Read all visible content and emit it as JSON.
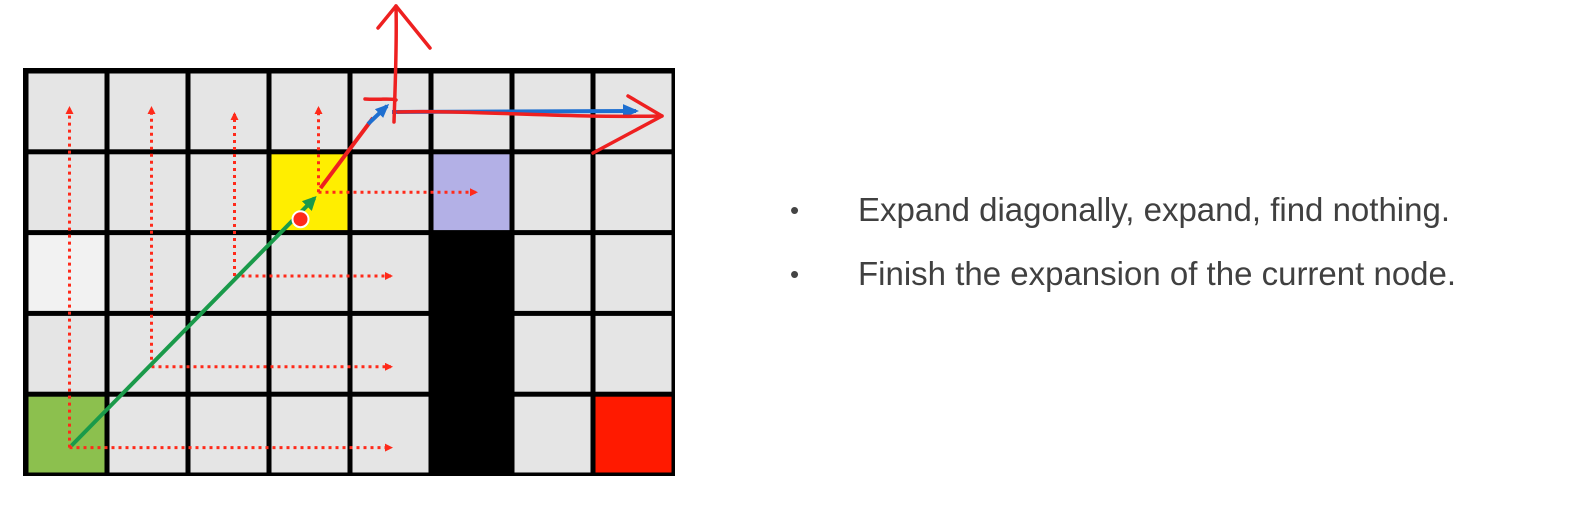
{
  "grid": {
    "rows": 5,
    "cols": 8,
    "colors": {
      "empty": "#e5e5e5",
      "start": "#8cc04e",
      "current": "#ffee00",
      "goal": "#ff1a00",
      "forced": "#b3b0e6",
      "obstacle": "#000000",
      "lighter": "#f2f2f2"
    },
    "cells": [
      [
        "empty",
        "empty",
        "empty",
        "empty",
        "empty",
        "empty",
        "empty",
        "empty"
      ],
      [
        "empty",
        "empty",
        "empty",
        "current",
        "empty",
        "forced",
        "empty",
        "empty"
      ],
      [
        "lighter",
        "empty",
        "empty",
        "empty",
        "empty",
        "obstacle",
        "empty",
        "empty"
      ],
      [
        "empty",
        "empty",
        "empty",
        "empty",
        "empty",
        "obstacle",
        "empty",
        "empty"
      ],
      [
        "start",
        "empty",
        "empty",
        "empty",
        "empty",
        "obstacle",
        "empty",
        "goal"
      ]
    ]
  },
  "arrow_colors": {
    "dotted": "#ff2a1a",
    "diagonal_path": "#1a9a4a",
    "blue_scan": "#1e6fd0",
    "hand_drawn": "#ee2020"
  },
  "bullets": [
    "Expand diagonally, expand, find nothing.",
    "Finish the expansion of the current node."
  ]
}
